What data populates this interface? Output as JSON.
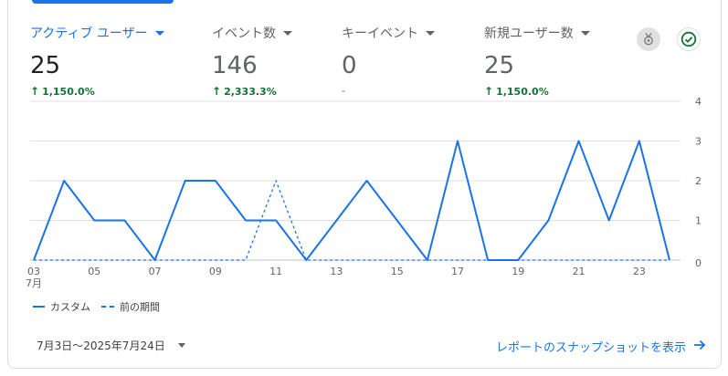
{
  "metrics": [
    {
      "label": "アクティブ ユーザー",
      "value": "25",
      "change": "1,150.0%",
      "active": true
    },
    {
      "label": "イベント数",
      "value": "146",
      "change": "2,333.3%",
      "active": false
    },
    {
      "label": "キーイベント",
      "value": "0",
      "change": "-",
      "active": false
    },
    {
      "label": "新規ユーザー数",
      "value": "25",
      "change": "1,150.0%",
      "active": false
    }
  ],
  "icons": {
    "medal": "medal-icon",
    "check": "check-circle-icon",
    "up_arrow": "↑",
    "link_arrow": "→"
  },
  "colors": {
    "accent": "#1a73e8",
    "positive": "#137333",
    "grid": "#e0e0e0"
  },
  "chart_data": {
    "type": "line",
    "x_ticks": [
      "03",
      "05",
      "07",
      "09",
      "11",
      "13",
      "15",
      "17",
      "19",
      "21",
      "23"
    ],
    "x_month_label": "7月",
    "y_ticks": [
      "0",
      "1",
      "2",
      "3",
      "4"
    ],
    "ylim": [
      0,
      4
    ],
    "x": [
      3,
      4,
      5,
      6,
      7,
      8,
      9,
      10,
      11,
      12,
      13,
      14,
      15,
      16,
      17,
      18,
      19,
      20,
      21,
      22,
      23,
      24
    ],
    "series": [
      {
        "name": "カスタム",
        "style": "solid",
        "values": [
          0,
          2,
          1,
          1,
          0,
          2,
          2,
          1,
          1,
          0,
          1,
          2,
          1,
          0,
          3,
          0,
          0,
          1,
          3,
          1,
          3,
          0
        ]
      },
      {
        "name": "前の期間",
        "style": "dashed",
        "values": [
          0,
          0,
          0,
          0,
          0,
          0,
          0,
          0,
          2,
          0,
          0,
          0,
          0,
          0,
          0,
          0,
          0,
          0,
          0,
          0,
          0,
          0
        ]
      }
    ],
    "grid": true,
    "legend_placement": "bottom-left"
  },
  "footer": {
    "date_range": "7月3日〜2025年7月24日",
    "snapshot_link": "レポートのスナップショットを表示"
  }
}
